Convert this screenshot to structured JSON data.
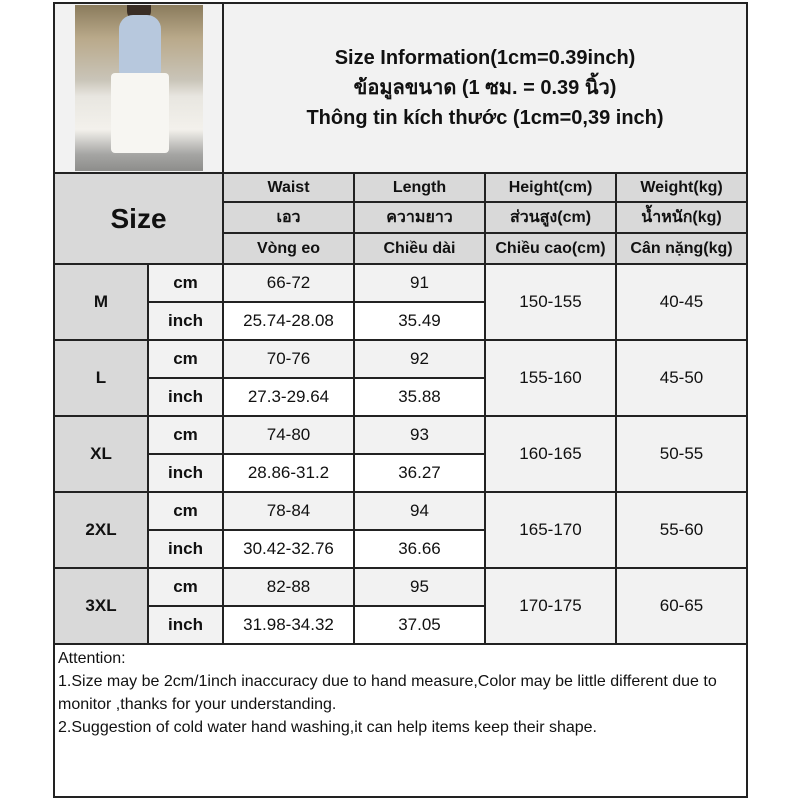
{
  "title_lines": [
    "Size Information(1cm=0.39inch)",
    "ข้อมูลขนาด (1 ซม. = 0.39 นิ้ว)",
    "Thông tin kích thước (1cm=0,39 inch)"
  ],
  "size_header": "Size",
  "columns": [
    [
      "Waist",
      "เอว",
      "Vòng eo"
    ],
    [
      "Length",
      "ความยาว",
      "Chiều dài"
    ],
    [
      "Height(cm)",
      "ส่วนสูง(cm)",
      "Chiều cao(cm)"
    ],
    [
      "Weight(kg)",
      "น้ำหนัก(kg)",
      "Cân nặng(kg)"
    ]
  ],
  "rows": [
    {
      "size": "M",
      "cm_label": "cm",
      "inch_label": "inch",
      "waist_cm": "66-72",
      "length_cm": "91",
      "waist_inch": "25.74-28.08",
      "length_inch": "35.49",
      "height": "150-155",
      "weight": "40-45"
    },
    {
      "size": "L",
      "cm_label": "cm",
      "inch_label": "inch",
      "waist_cm": "70-76",
      "length_cm": "92",
      "waist_inch": "27.3-29.64",
      "length_inch": "35.88",
      "height": "155-160",
      "weight": "45-50"
    },
    {
      "size": "XL",
      "cm_label": "cm",
      "inch_label": "inch",
      "waist_cm": "74-80",
      "length_cm": "93",
      "waist_inch": "28.86-31.2",
      "length_inch": "36.27",
      "height": "160-165",
      "weight": "50-55"
    },
    {
      "size": "2XL",
      "cm_label": "cm",
      "inch_label": "inch",
      "waist_cm": "78-84",
      "length_cm": "94",
      "waist_inch": "30.42-32.76",
      "length_inch": "36.66",
      "height": "165-170",
      "weight": "55-60"
    },
    {
      "size": "3XL",
      "cm_label": "cm",
      "inch_label": "inch",
      "waist_cm": "82-88",
      "length_cm": "95",
      "waist_inch": "31.98-34.32",
      "length_inch": "37.05",
      "height": "170-175",
      "weight": "60-65"
    }
  ],
  "attention": {
    "heading": "Attention:",
    "lines": [
      "1.Size may be 2cm/1inch inaccuracy due to hand measure,Color may be little different due to monitor ,thanks for your understanding.",
      "2.Suggestion of cold water hand washing,it can help items keep their shape."
    ]
  },
  "colors": {
    "header_gray": "#d9d9d9",
    "light_gray": "#f2f2f2",
    "border": "#222222"
  }
}
